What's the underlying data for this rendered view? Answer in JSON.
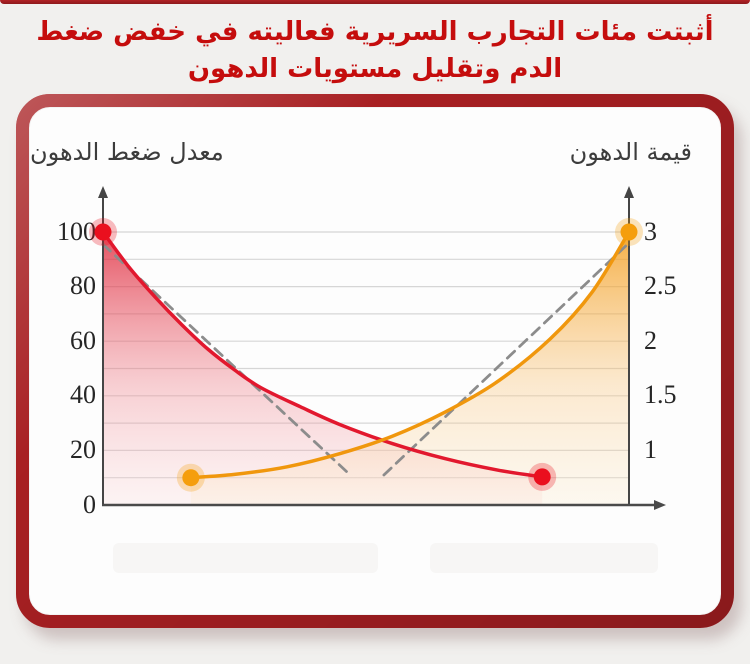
{
  "page": {
    "background": "#f1f0ee",
    "top_strip_color": "#9e1b20"
  },
  "header": {
    "line1": "أثبتت مئات التجارب السريرية فعاليته في خفض ضغط",
    "line2": "الدم وتقليل مستويات الدهون",
    "color": "#c50d0d"
  },
  "panel": {
    "border_color": "#a82023",
    "background": "#fdfdfd"
  },
  "chart_data": {
    "type": "line",
    "title": "",
    "left_axis": {
      "title": "معدل ضغط الدهون",
      "ticks": [
        100,
        80,
        60,
        40,
        20,
        0
      ],
      "range": [
        0,
        100
      ],
      "arrow": "up"
    },
    "right_axis": {
      "title": "قيمة الدهون",
      "ticks": [
        3,
        2.5,
        2,
        1.5,
        1
      ],
      "range_shown": [
        1,
        3
      ],
      "alignment_note": "right value r aligns with left value 40*r-20 (3↔100, 1↔20)",
      "arrow": "up"
    },
    "x_axis": {
      "labels": [],
      "arrow": "right"
    },
    "grid": {
      "horizontal_every_left_units": 10,
      "color": "#d6d6d6"
    },
    "gridlines_left_units": [
      10,
      20,
      30,
      40,
      50,
      60,
      70,
      80,
      90,
      100
    ],
    "series": [
      {
        "name": "blood-pressure-rate",
        "label": "معدل ضغط الدهون",
        "axis": "left",
        "color": "#e2182e",
        "dot_color": "#ea0f1e",
        "fill_top": "rgba(222,30,50,0.78)",
        "fill_mid": "rgba(238,130,140,0.38)",
        "fill_bottom": "rgba(250,215,215,0.22)",
        "x_fraction": [
          0,
          0.05,
          0.1,
          0.15,
          0.2,
          0.25,
          0.3,
          0.375,
          0.45,
          0.55,
          0.65,
          0.75,
          0.835
        ],
        "values": [
          100,
          87,
          76,
          66,
          57,
          49.5,
          43,
          36,
          29.5,
          22.5,
          17,
          12.8,
          10.3
        ],
        "endpoint_dots": true
      },
      {
        "name": "fat-value",
        "label": "قيمة الدهون",
        "axis": "right",
        "color": "#f0970d",
        "dot_color": "#f59e0c",
        "fill_top": "rgba(243,152,15,0.78)",
        "fill_mid": "rgba(248,195,120,0.35)",
        "fill_bottom": "rgba(252,235,205,0.25)",
        "x_fraction": [
          0.167,
          0.25,
          0.35,
          0.45,
          0.55,
          0.65,
          0.75,
          0.85,
          0.93,
          1
        ],
        "values": [
          0.75,
          0.78,
          0.85,
          0.97,
          1.13,
          1.35,
          1.63,
          2.02,
          2.45,
          3.0
        ],
        "endpoint_dots": true
      }
    ],
    "annotations": {
      "dashed_trend_lines": [
        {
          "from_x_fraction": 0,
          "from_left_value": 95.5,
          "to_x_fraction": 0.47,
          "to_left_value": 11
        },
        {
          "from_x_fraction": 0.534,
          "from_left_value": 11,
          "to_x_fraction": 1,
          "to_left_value": 96
        }
      ],
      "dash_color": "#8c8c8c"
    },
    "legend": {
      "visible": false
    }
  }
}
